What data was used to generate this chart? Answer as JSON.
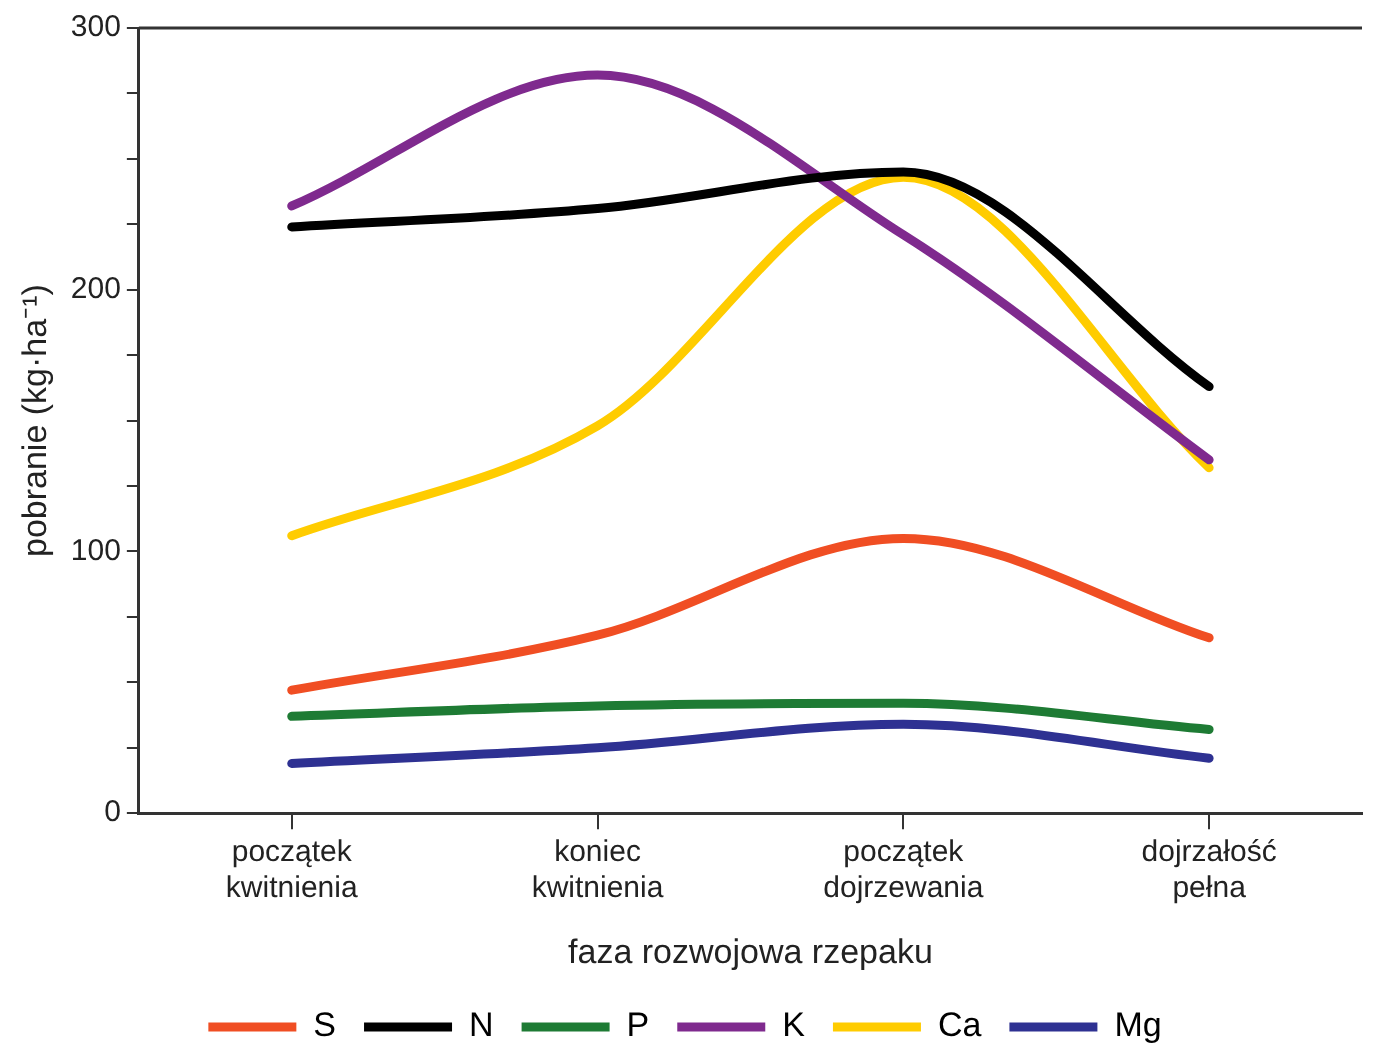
{
  "chart_data": {
    "type": "line",
    "xlabel": "faza rozwojowa rzepaku",
    "ylabel": "pobranie (kg·ha⁻¹)",
    "categories": [
      "początek kwitnienia",
      "koniec kwitnienia",
      "początek dojrzewania",
      "dojrzałość pełna"
    ],
    "ylim": [
      0,
      300
    ],
    "yticks": [
      0,
      {
        "value": 25,
        "label": null
      },
      {
        "value": 50,
        "label": null
      },
      {
        "value": 75,
        "label": null
      },
      100,
      {
        "value": 125,
        "label": null
      },
      {
        "value": 150,
        "label": null
      },
      {
        "value": 175,
        "label": null
      },
      200,
      {
        "value": 225,
        "label": null
      },
      {
        "value": 250,
        "label": null
      },
      {
        "value": 275,
        "label": null
      },
      300
    ],
    "grid": false,
    "legend": "bottom",
    "marker": "none",
    "line_style": "solid",
    "series": [
      {
        "name": "S",
        "color": "#f04e23",
        "values": [
          47,
          68,
          105,
          67
        ]
      },
      {
        "name": "N",
        "color": "#000000",
        "values": [
          224,
          231,
          245,
          163
        ]
      },
      {
        "name": "P",
        "color": "#1e7b34",
        "values": [
          37,
          41,
          42,
          32
        ]
      },
      {
        "name": "K",
        "color": "#7f2a8e",
        "values": [
          232,
          282,
          221,
          135
        ]
      },
      {
        "name": "Ca",
        "color": "#ffcc00",
        "values": [
          106,
          148,
          243,
          132
        ]
      },
      {
        "name": "Mg",
        "color": "#2e3192",
        "values": [
          19,
          25,
          34,
          21
        ]
      }
    ]
  }
}
